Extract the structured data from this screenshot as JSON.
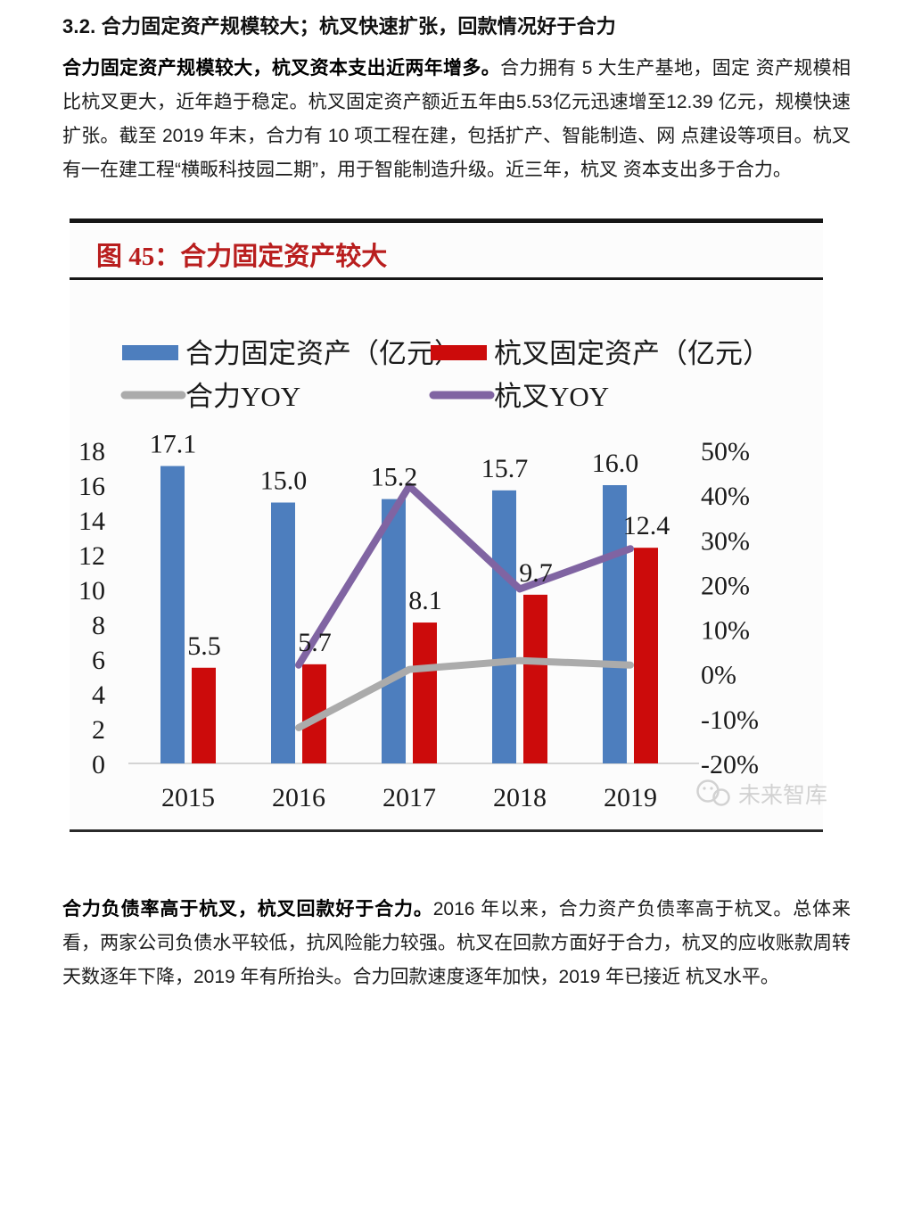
{
  "heading": "3.2. 合力固定资产规模较大；杭叉快速扩张，回款情况好于合力",
  "para1": {
    "lead": "合力固定资产规模较大，杭叉资本支出近两年增多。",
    "body": "合力拥有 5 大生产基地，固定 资产规模相比杭叉更大，近年趋于稳定。杭叉固定资产额近五年由5.53亿元迅速增至12.39 亿元，规模快速扩张。截至 2019 年末，合力有 10 项工程在建，包括扩产、智能制造、网 点建设等项目。杭叉有一在建工程“横畈科技园二期”，用于智能制造升级。近三年，杭叉 资本支出多于合力。"
  },
  "para2": {
    "lead": "合力负债率高于杭叉，杭叉回款好于合力。",
    "body": "2016 年以来，合力资产负债率高于杭叉。总体来看，两家公司负债水平较低，抗风险能力较强。杭叉在回款方面好于合力，杭叉的应收账款周转天数逐年下降，2019 年有所抬头。合力回款速度逐年加快，2019 年已接近 杭叉水平。"
  },
  "figure": {
    "title": "图 45：合力固定资产较大",
    "title_color": "#b91e1e",
    "watermark": "未来智库"
  },
  "chart_data": {
    "type": "bar",
    "subtype": "bar+line combo, dual axis",
    "title": "图 45：合力固定资产较大",
    "categories": [
      "2015",
      "2016",
      "2017",
      "2018",
      "2019"
    ],
    "series": [
      {
        "name": "合力固定资产（亿元）",
        "type": "bar",
        "axis": "left",
        "color": "#4d7ebe",
        "values": [
          17.1,
          15.0,
          15.2,
          15.7,
          16.0
        ]
      },
      {
        "name": "杭叉固定资产（亿元）",
        "type": "bar",
        "axis": "left",
        "color": "#cc0b0b",
        "values": [
          5.5,
          5.7,
          8.1,
          9.7,
          12.4
        ]
      },
      {
        "name": "合力YOY",
        "type": "line",
        "axis": "right",
        "color": "#ababab",
        "unit": "%",
        "values": [
          null,
          -12,
          1,
          3,
          2
        ]
      },
      {
        "name": "杭叉YOY",
        "type": "line",
        "axis": "right",
        "color": "#8064a2",
        "unit": "%",
        "values": [
          null,
          2,
          42,
          19,
          28
        ]
      }
    ],
    "axis_left": {
      "min": 0,
      "max": 18,
      "step": 2
    },
    "axis_right": {
      "min": -20,
      "max": 50,
      "step": 10,
      "suffix": "%"
    },
    "bar_value_labels": true,
    "legend_position": "top",
    "grid": false
  }
}
